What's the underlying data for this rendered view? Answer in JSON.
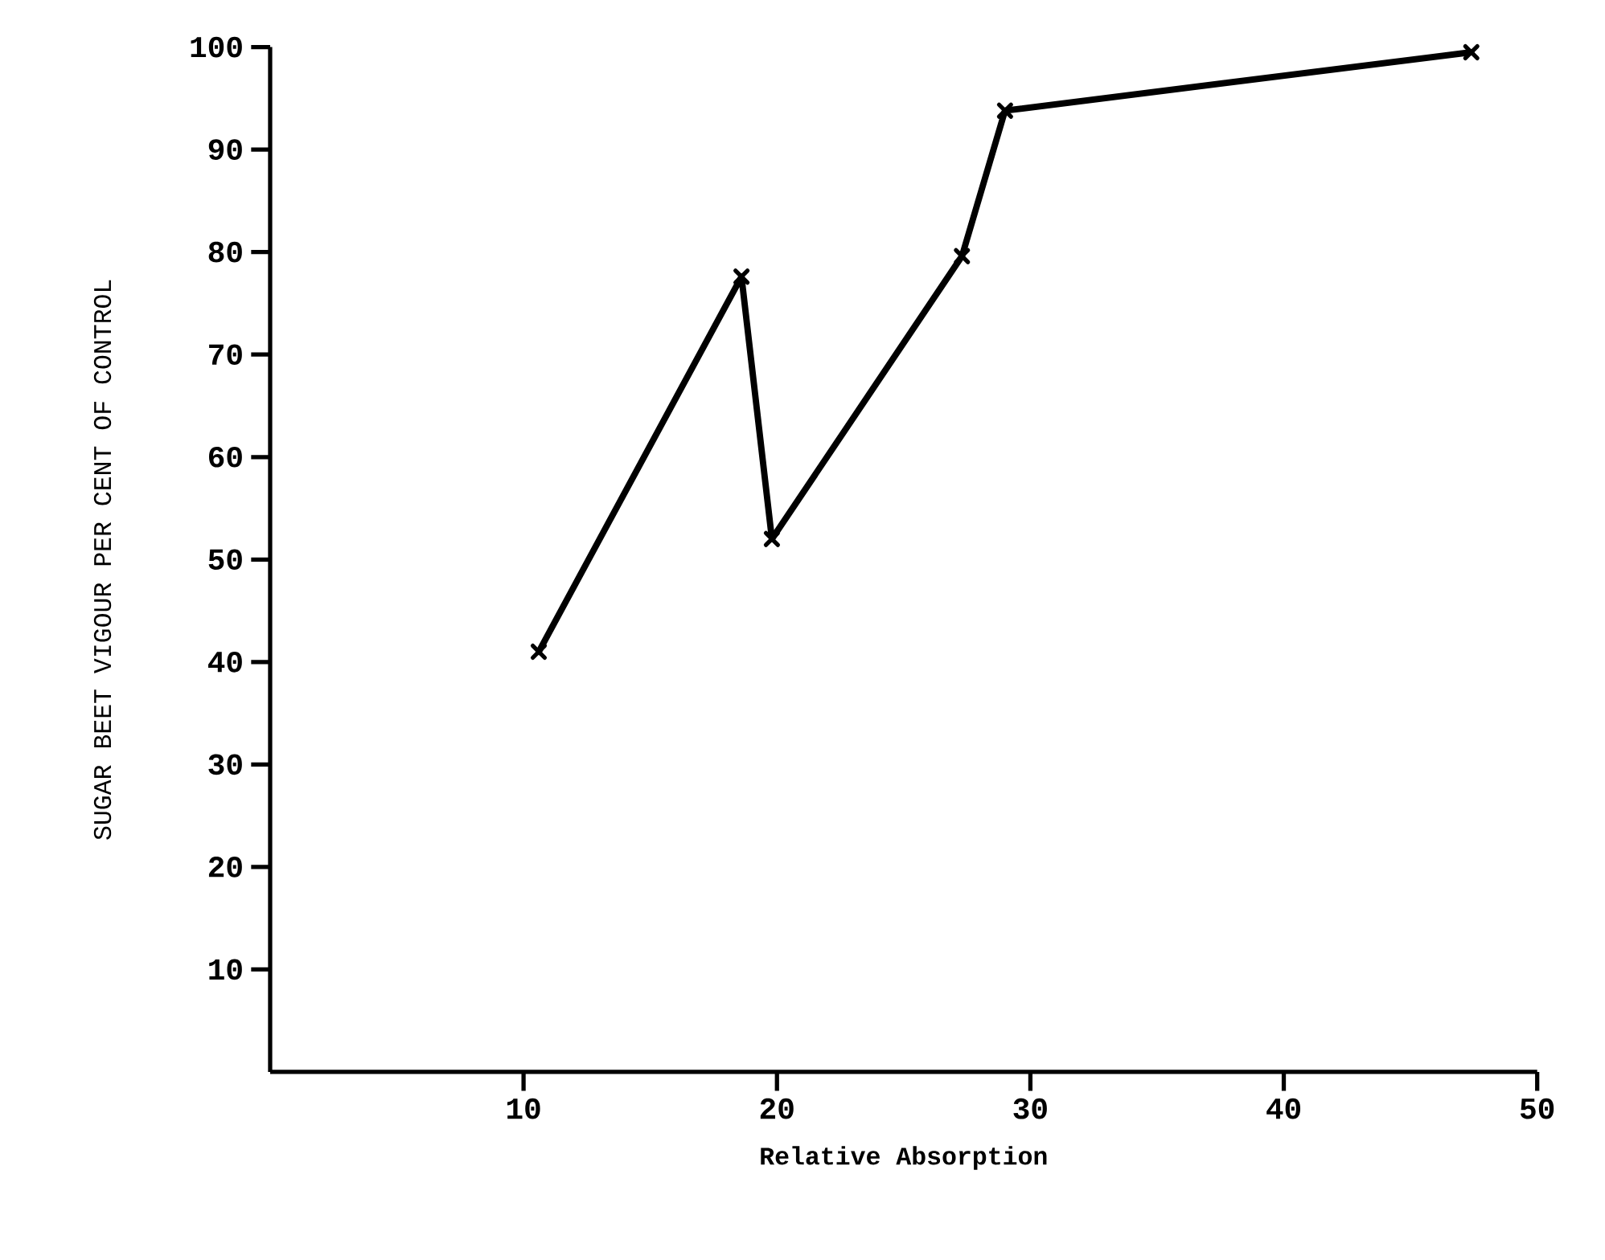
{
  "chart_data": {
    "type": "line",
    "xlabel": "Relative Absorption",
    "ylabel": "SUGAR BEET VIGOUR  PER CENT OF CONTROL",
    "x": [
      10.6,
      18.6,
      19.8,
      27.3,
      29.0,
      47.4
    ],
    "values": [
      41,
      77.6,
      52.0,
      79.6,
      93.8,
      99.5
    ],
    "color": "#000000",
    "marker": "cross",
    "line_style": "solid",
    "xlim": [
      0,
      50
    ],
    "ylim": [
      0,
      100
    ],
    "xticks": [
      10,
      20,
      30,
      40,
      50
    ],
    "yticks": [
      10,
      20,
      30,
      40,
      50,
      60,
      70,
      80,
      90,
      100
    ]
  }
}
